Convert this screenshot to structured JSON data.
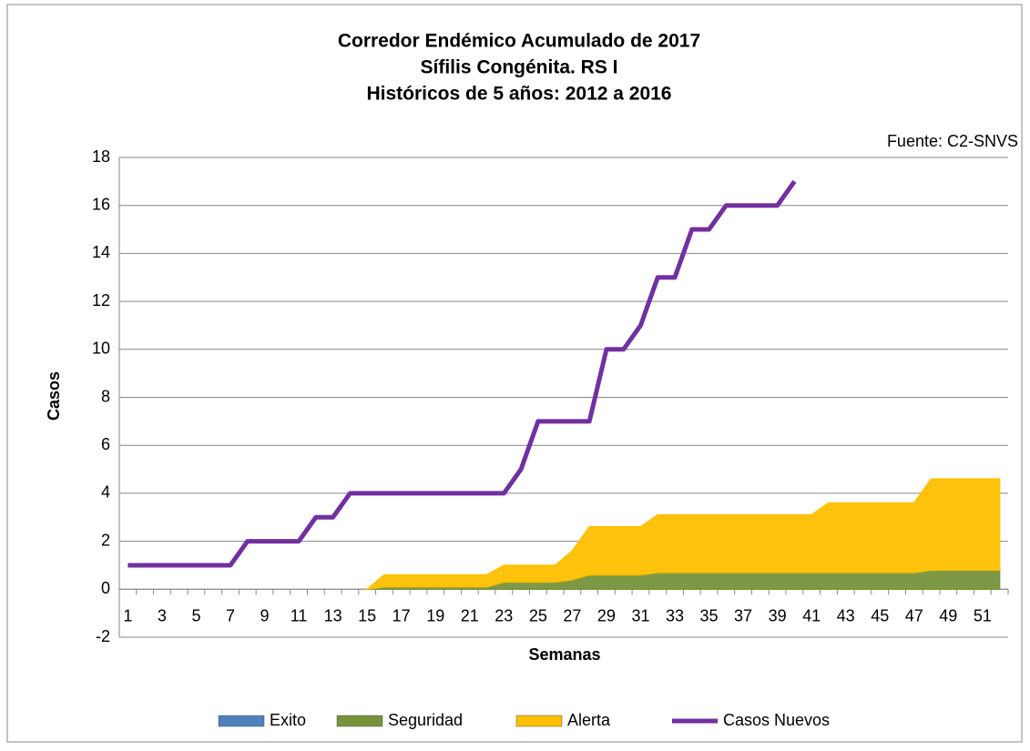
{
  "chart_data": {
    "type": "stacked_area_line",
    "title_lines": [
      "Corredor Endémico Acumulado de 2017",
      "Sífilis Congénita.  RS I",
      "Históricos de 5 años: 2012 a 2016"
    ],
    "annotation": "Fuente: C2-SNVS",
    "x_label": "Semanas",
    "y_label": "Casos",
    "categories": [
      1,
      null,
      3,
      null,
      5,
      null,
      7,
      null,
      9,
      null,
      11,
      null,
      13,
      null,
      15,
      null,
      17,
      null,
      19,
      null,
      21,
      null,
      23,
      null,
      25,
      null,
      27,
      null,
      29,
      null,
      31,
      null,
      33,
      null,
      35,
      null,
      37,
      null,
      39,
      null,
      41,
      null,
      43,
      null,
      45,
      null,
      47,
      null,
      49,
      null,
      51,
      null
    ],
    "ylim": [
      -2,
      18
    ],
    "yticks": [
      -2,
      0,
      2,
      4,
      6,
      8,
      10,
      12,
      14,
      16,
      18
    ],
    "grid": true,
    "legend": "bottom",
    "series": [
      {
        "name": "Exito",
        "color": "#4f81bd",
        "kind": "area",
        "values": [
          null,
          null,
          null,
          null,
          null,
          null,
          null,
          null,
          null,
          null,
          null,
          null,
          null,
          null,
          0,
          0,
          0,
          0,
          0,
          0,
          0,
          0,
          0,
          0,
          0,
          0,
          0,
          0,
          0,
          0,
          0,
          0,
          0,
          0,
          0,
          0,
          0,
          0,
          0,
          0,
          0,
          0,
          0,
          0,
          0,
          0,
          0,
          0,
          0,
          0,
          0,
          0
        ]
      },
      {
        "name": "Seguridad",
        "color": "#77933c",
        "kind": "area",
        "values": [
          null,
          null,
          null,
          null,
          null,
          null,
          null,
          null,
          null,
          null,
          null,
          null,
          null,
          null,
          0,
          0.1,
          0.1,
          0.1,
          0.1,
          0.1,
          0.1,
          0.1,
          0.3,
          0.3,
          0.3,
          0.3,
          0.4,
          0.6,
          0.6,
          0.6,
          0.6,
          0.7,
          0.7,
          0.7,
          0.7,
          0.7,
          0.7,
          0.7,
          0.7,
          0.7,
          0.7,
          0.7,
          0.7,
          0.7,
          0.7,
          0.7,
          0.7,
          0.8,
          0.8,
          0.8,
          0.8,
          0.8
        ]
      },
      {
        "name": "Alerta",
        "color": "#ffc000",
        "kind": "area",
        "values": [
          null,
          null,
          null,
          null,
          null,
          null,
          null,
          null,
          null,
          null,
          null,
          null,
          null,
          null,
          0,
          0.5,
          0.5,
          0.5,
          0.5,
          0.5,
          0.5,
          0.5,
          0.7,
          0.7,
          0.7,
          0.7,
          1.2,
          2.0,
          2.0,
          2.0,
          2.0,
          2.4,
          2.4,
          2.4,
          2.4,
          2.4,
          2.4,
          2.4,
          2.4,
          2.4,
          2.4,
          2.9,
          2.9,
          2.9,
          2.9,
          2.9,
          2.9,
          3.8,
          3.8,
          3.8,
          3.8,
          3.8
        ]
      },
      {
        "name": "Casos Nuevos",
        "color": "#7030a0",
        "kind": "line",
        "values": [
          1,
          1,
          1,
          1,
          1,
          1,
          1,
          2,
          2,
          2,
          2,
          3,
          3,
          4,
          4,
          4,
          4,
          4,
          4,
          4,
          4,
          4,
          4,
          5,
          7,
          7,
          7,
          7,
          10,
          10,
          11,
          13,
          13,
          15,
          15,
          16,
          16,
          16,
          16,
          17,
          null,
          null,
          null,
          null,
          null,
          null,
          null,
          null,
          null,
          null,
          null,
          null
        ]
      }
    ]
  }
}
